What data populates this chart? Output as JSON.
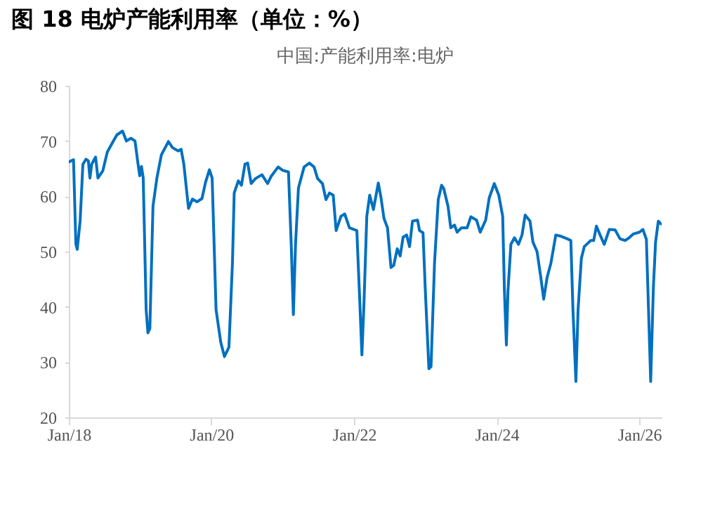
{
  "chart_data": {
    "type": "line",
    "title": "图 18  电炉产能利用率（单位：%）",
    "subtitle": "中国:产能利用率:电炉",
    "xlim": [
      "2018-01-01",
      "2026-04-25"
    ],
    "xticks": [
      {
        "value": "2018-01-01",
        "label": "Jan/18"
      },
      {
        "value": "2020-01-01",
        "label": "Jan/20"
      },
      {
        "value": "2022-01-01",
        "label": "Jan/22"
      },
      {
        "value": "2024-01-01",
        "label": "Jan/24"
      },
      {
        "value": "2026-01-01",
        "label": "Jan/26"
      }
    ],
    "ylim": [
      20,
      80
    ],
    "yticks": [
      20,
      30,
      40,
      50,
      60,
      70,
      80
    ],
    "grid": false,
    "marker": "none",
    "line_style": "solid",
    "x": [
      "2018-01-01",
      "2018-01-25",
      "2018-02-06",
      "2018-02-13",
      "2018-02-28",
      "2018-03-14",
      "2018-03-30",
      "2018-04-11",
      "2018-04-19",
      "2018-04-28",
      "2018-05-18",
      "2018-05-30",
      "2018-06-24",
      "2018-07-17",
      "2018-08-11",
      "2018-09-04",
      "2018-10-03",
      "2018-10-23",
      "2018-11-15",
      "2018-12-06",
      "2018-12-20",
      "2018-12-30",
      "2019-01-08",
      "2019-01-17",
      "2019-02-01",
      "2019-02-10",
      "2019-02-20",
      "2019-03-08",
      "2019-03-28",
      "2019-04-20",
      "2019-05-26",
      "2019-06-16",
      "2019-07-15",
      "2019-07-30",
      "2019-08-13",
      "2019-09-06",
      "2019-09-26",
      "2019-10-20",
      "2019-11-14",
      "2019-12-02",
      "2019-12-22",
      "2020-01-05",
      "2020-01-25",
      "2020-02-18",
      "2020-03-08",
      "2020-03-31",
      "2020-04-18",
      "2020-04-27",
      "2020-05-18",
      "2020-06-03",
      "2020-06-21",
      "2020-07-05",
      "2020-07-23",
      "2020-08-14",
      "2020-09-16",
      "2020-10-15",
      "2020-11-02",
      "2020-12-08",
      "2020-12-31",
      "2021-01-30",
      "2021-02-13",
      "2021-02-24",
      "2021-03-07",
      "2021-03-22",
      "2021-04-20",
      "2021-05-17",
      "2021-06-10",
      "2021-06-28",
      "2021-07-23",
      "2021-08-10",
      "2021-08-28",
      "2021-09-16",
      "2021-10-01",
      "2021-10-26",
      "2021-11-14",
      "2021-12-08",
      "2022-01-15",
      "2022-01-30",
      "2022-02-10",
      "2022-02-21",
      "2022-03-07",
      "2022-03-22",
      "2022-04-10",
      "2022-05-05",
      "2022-05-19",
      "2022-06-03",
      "2022-06-21",
      "2022-07-09",
      "2022-07-23",
      "2022-08-10",
      "2022-08-25",
      "2022-09-09",
      "2022-09-27",
      "2022-10-12",
      "2022-10-27",
      "2022-11-22",
      "2022-12-02",
      "2022-12-20",
      "2023-01-01",
      "2023-01-19",
      "2023-01-30",
      "2023-02-17",
      "2023-03-08",
      "2023-03-25",
      "2023-04-05",
      "2023-04-27",
      "2023-05-11",
      "2023-05-30",
      "2023-06-13",
      "2023-07-05",
      "2023-08-03",
      "2023-08-22",
      "2023-09-20",
      "2023-10-09",
      "2023-11-06",
      "2023-11-24",
      "2023-12-20",
      "2024-01-12",
      "2024-02-01",
      "2024-02-10",
      "2024-02-20",
      "2024-02-28",
      "2024-03-14",
      "2024-04-01",
      "2024-04-22",
      "2024-05-10",
      "2024-05-26",
      "2024-06-20",
      "2024-07-05",
      "2024-07-26",
      "2024-08-14",
      "2024-08-29",
      "2024-09-16",
      "2024-10-05",
      "2024-10-30",
      "2024-11-22",
      "2024-12-28",
      "2025-01-15",
      "2025-01-26",
      "2025-02-10",
      "2025-02-21",
      "2025-03-10",
      "2025-03-25",
      "2025-04-27",
      "2025-05-12",
      "2025-05-26",
      "2025-06-14",
      "2025-07-05",
      "2025-07-31",
      "2025-08-30",
      "2025-09-24",
      "2025-10-20",
      "2025-11-10",
      "2025-12-02",
      "2026-01-01",
      "2026-01-19",
      "2026-02-06",
      "2026-02-17",
      "2026-02-28",
      "2026-03-14",
      "2026-03-25",
      "2026-04-08",
      "2026-04-22"
    ],
    "series": [
      {
        "color": "#0070c0",
        "values": [
          66.2,
          66.6,
          51.4,
          50.4,
          55.6,
          65.8,
          66.7,
          66.4,
          63.3,
          65.8,
          67.1,
          63.3,
          64.6,
          68,
          69.6,
          71.1,
          71.8,
          70,
          70.5,
          70,
          66.2,
          63.7,
          65.4,
          63.3,
          39.5,
          35.3,
          36.1,
          58.2,
          63.3,
          67.5,
          69.9,
          68.8,
          68.2,
          68.5,
          65.8,
          57.8,
          59.5,
          59,
          59.6,
          62.5,
          64.8,
          63.3,
          39.5,
          33.6,
          31,
          32.7,
          48,
          60.6,
          62.8,
          62,
          65.8,
          66,
          62.3,
          63.2,
          63.9,
          62.3,
          63.6,
          65.3,
          64.7,
          64.4,
          51.3,
          38.6,
          51.3,
          61.5,
          65.3,
          66,
          65.3,
          63.2,
          62.3,
          59.4,
          60.6,
          60.2,
          53.8,
          56.4,
          56.8,
          54.3,
          53.8,
          41.1,
          31.3,
          41.1,
          56.4,
          60.2,
          57.6,
          62.4,
          59.7,
          56,
          54.3,
          47.1,
          47.5,
          50.5,
          49.2,
          52.6,
          53,
          50.9,
          55.5,
          55.7,
          53.8,
          53.4,
          42.8,
          28.8,
          29.2,
          48,
          59.4,
          62,
          61.4,
          58.2,
          54.3,
          54.8,
          53.5,
          54.3,
          54.3,
          56.3,
          55.7,
          53.5,
          55.7,
          59.7,
          62.3,
          60.2,
          56.4,
          42.8,
          33.1,
          42.8,
          51.3,
          52.5,
          51.3,
          53,
          56.6,
          55.5,
          51.7,
          50,
          45.4,
          41.4,
          45.4,
          47.9,
          53,
          52.8,
          52.3,
          52,
          39.4,
          26.5,
          39.4,
          48.8,
          50.9,
          52,
          52,
          54.6,
          53,
          51.3,
          54,
          53.9,
          52.3,
          52,
          52.5,
          53.2,
          53.5,
          54,
          52.2,
          39.4,
          26.5,
          43.7,
          51.7,
          55.5,
          55
        ]
      }
    ]
  }
}
